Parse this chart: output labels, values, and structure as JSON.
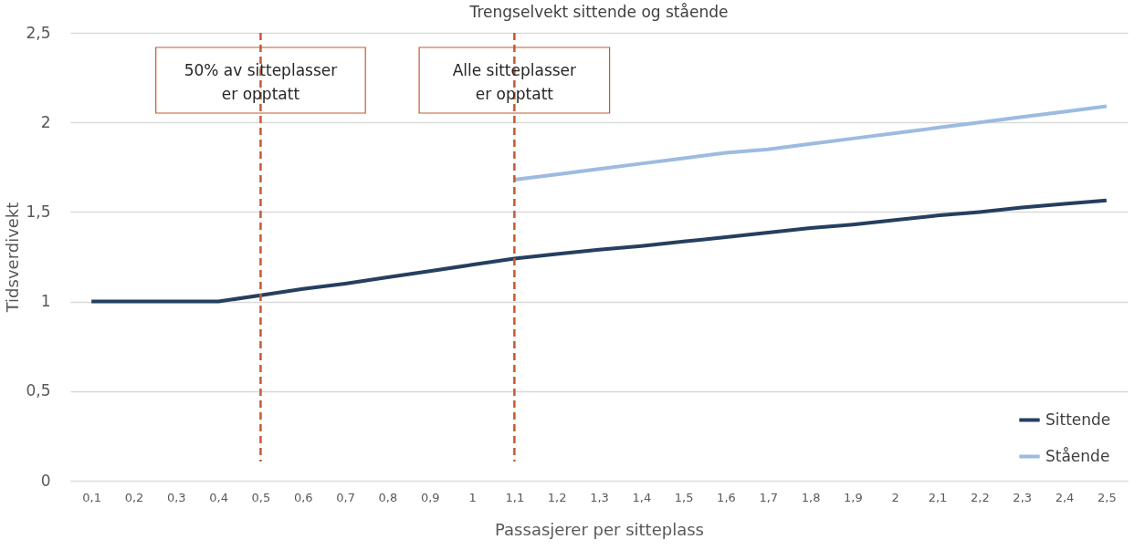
{
  "chart_data": {
    "type": "line",
    "title": "Trengselvekt sittende og stående",
    "xlabel": "Passasjerer per sitteplass",
    "ylabel": "Tidsverdivekt",
    "categories": [
      "0,1",
      "0,2",
      "0,3",
      "0,4",
      "0,5",
      "0,6",
      "0,7",
      "0,8",
      "0,9",
      "1",
      "1,1",
      "1,2",
      "1,3",
      "1,4",
      "1,5",
      "1,6",
      "1,7",
      "1,8",
      "1,9",
      "2",
      "2,1",
      "2,2",
      "2,3",
      "2,4",
      "2,5"
    ],
    "series": [
      {
        "name": "Sittende",
        "color": "#243f60",
        "values": [
          1,
          1,
          1,
          1,
          1.035,
          1.07,
          1.1,
          1.135,
          1.17,
          1.205,
          1.24,
          1.265,
          1.29,
          1.31,
          1.335,
          1.36,
          1.385,
          1.41,
          1.43,
          1.455,
          1.48,
          1.5,
          1.525,
          1.545,
          1.565
        ]
      },
      {
        "name": "Stående",
        "color": "#9dbbe0",
        "values": [
          null,
          null,
          null,
          null,
          null,
          null,
          null,
          null,
          null,
          null,
          1.68,
          1.71,
          1.74,
          1.77,
          1.8,
          1.83,
          1.85,
          1.88,
          1.91,
          1.94,
          1.97,
          2.0,
          2.03,
          2.06,
          2.09
        ]
      }
    ],
    "ylim": [
      0,
      2.5
    ],
    "yticks": [
      0,
      {
        "value": 0.5,
        "label": "0,5"
      },
      1,
      {
        "value": 1.5,
        "label": "1,5"
      },
      2,
      {
        "value": 2.5,
        "label": "2,5"
      }
    ],
    "ref_lines": [
      {
        "axis": "x",
        "value": "0,5",
        "label": "50% av sitteplasser\ner opptatt",
        "color": "#c55a33",
        "line_style": "dashed"
      },
      {
        "axis": "x",
        "value": "1,1",
        "label": "Alle sitteplasser\ner opptatt",
        "color": "#c55a33",
        "line_style": "dashed"
      }
    ],
    "grid": "y",
    "legend": "bottom right",
    "line_style": "solid",
    "marker": "none"
  }
}
